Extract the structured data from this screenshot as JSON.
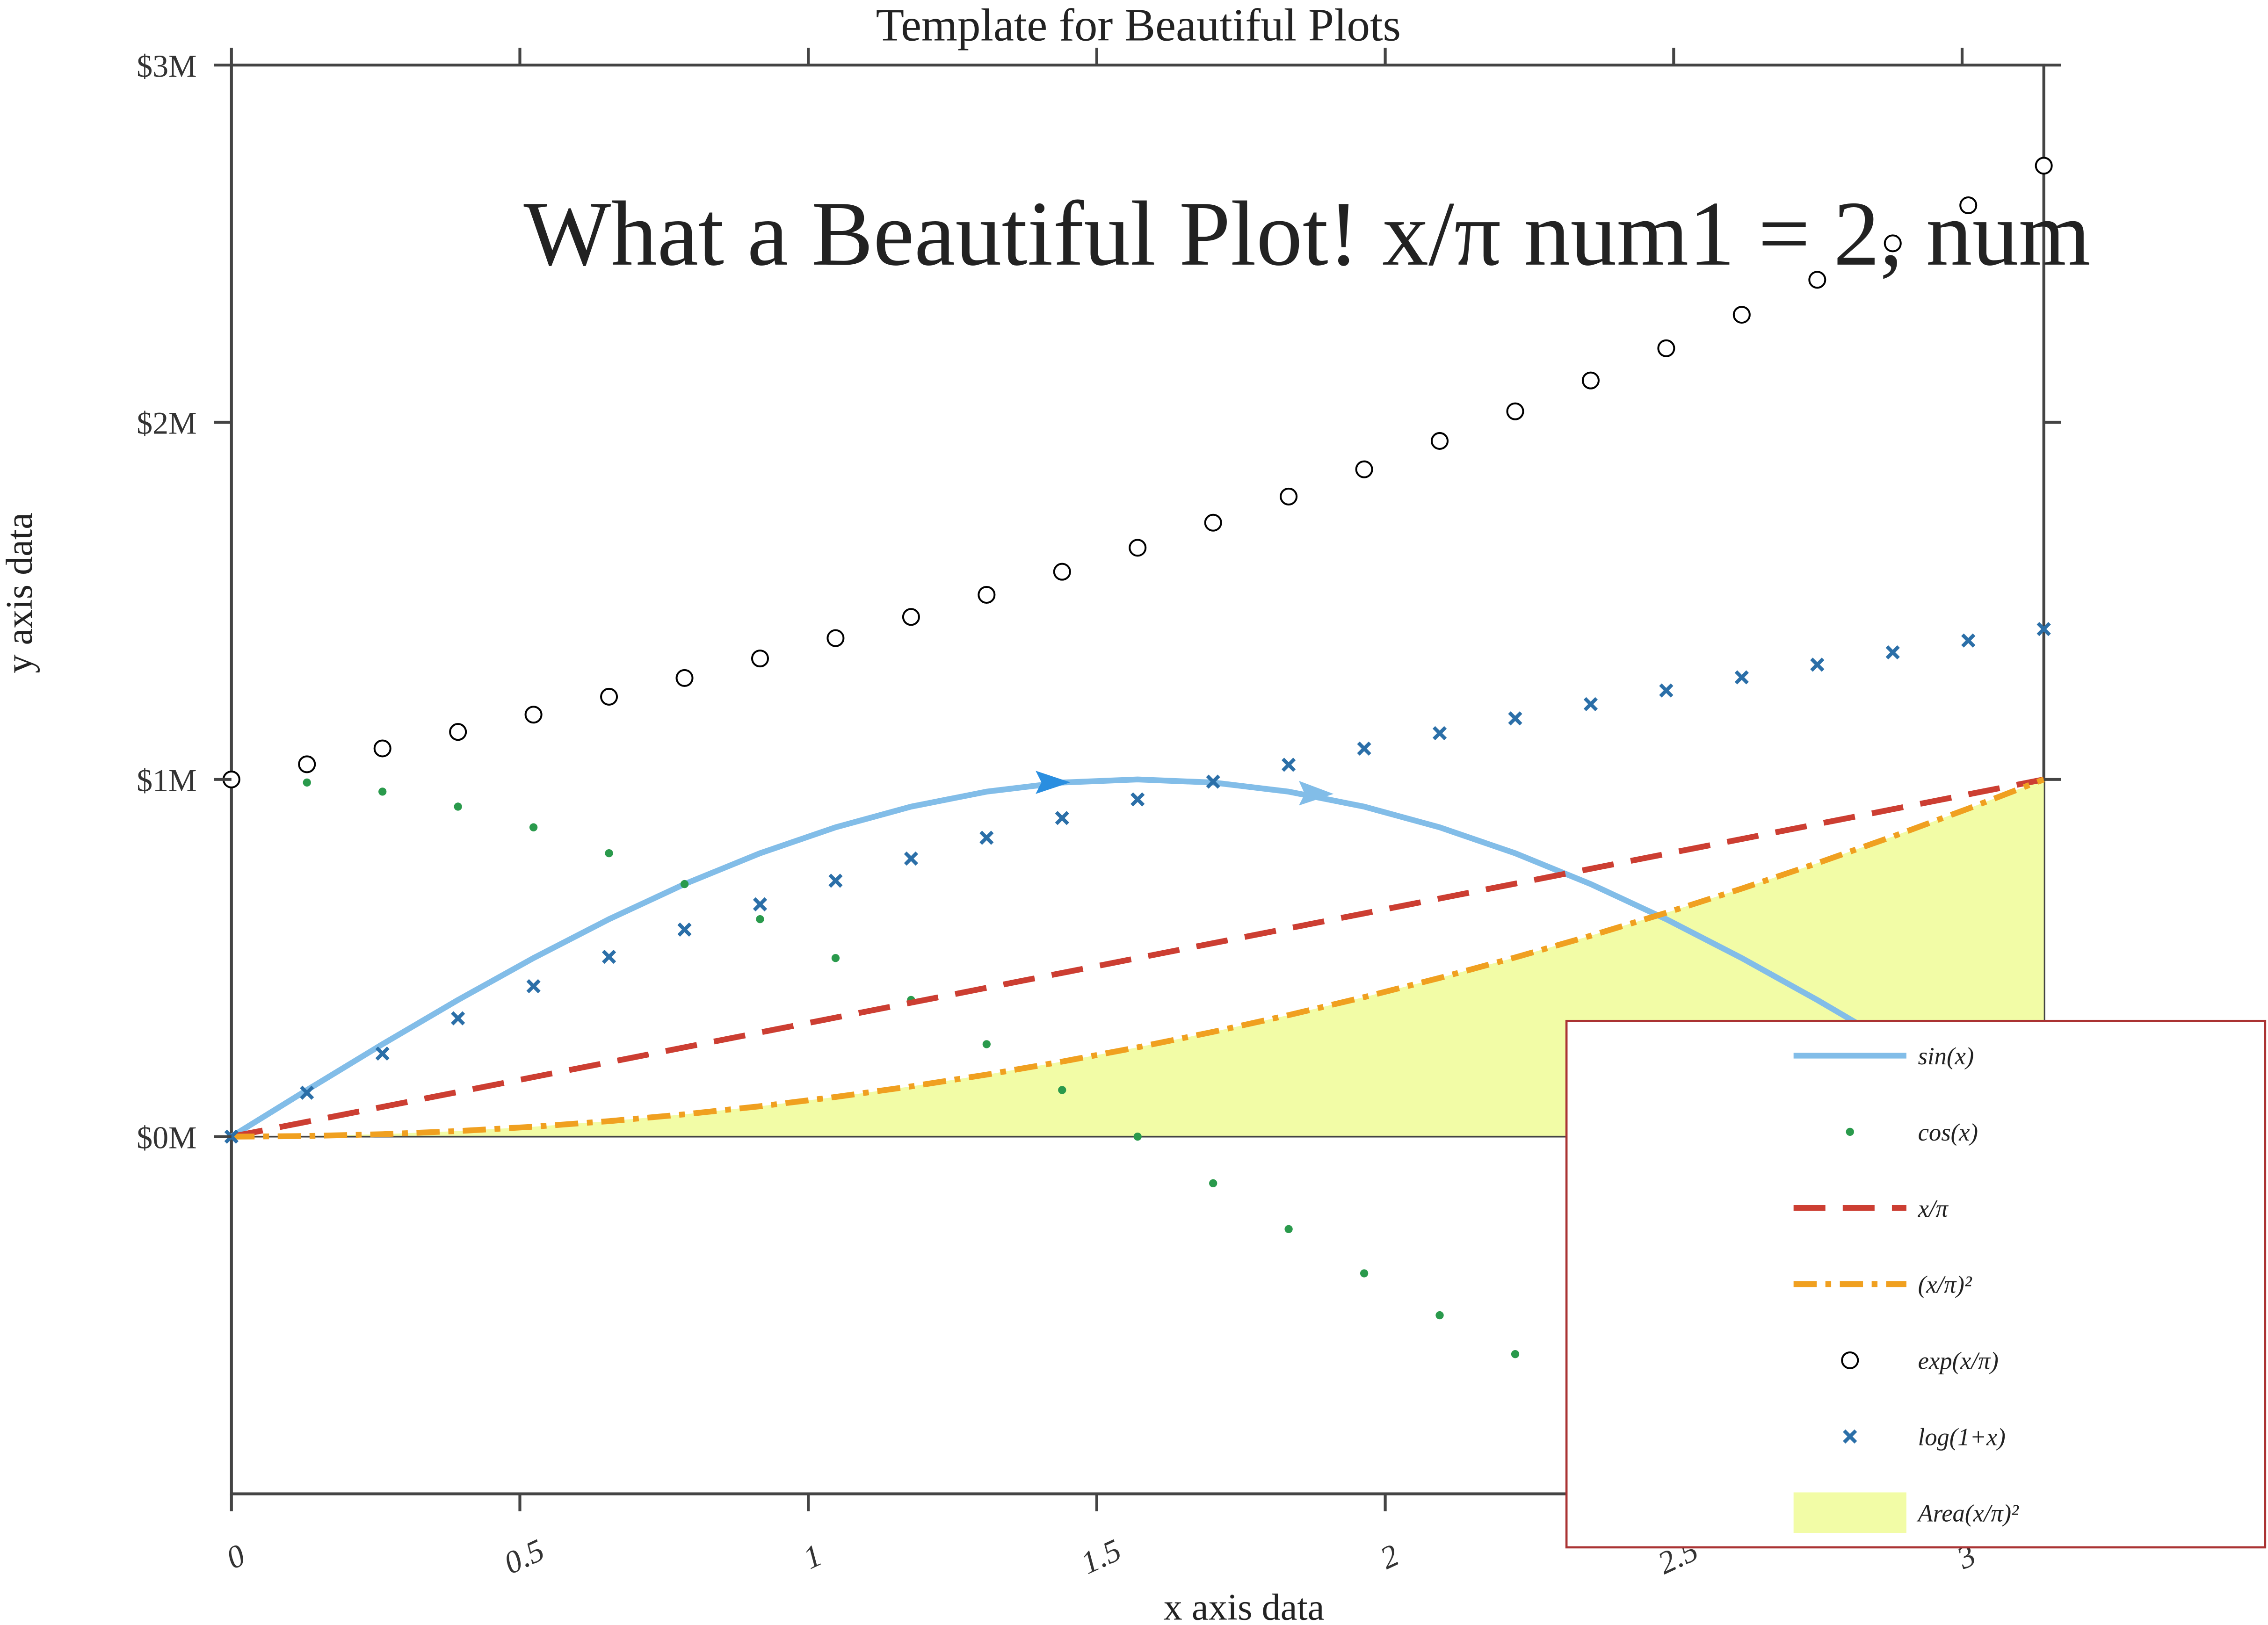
{
  "chart_data": {
    "type": "line",
    "title": "Template for Beautiful Plots",
    "xlabel": "x axis data",
    "ylabel": "y axis data",
    "annotation": "What a Beautiful Plot! x/π num1 = 2, num",
    "x": [
      0,
      0.1309,
      0.2618,
      0.3927,
      0.5236,
      0.6545,
      0.7854,
      0.9163,
      1.0472,
      1.1781,
      1.309,
      1.4399,
      1.5708,
      1.7017,
      1.8326,
      1.9635,
      2.0944,
      2.2253,
      2.3562,
      2.4871,
      2.618,
      2.7489,
      2.8798,
      3.0107,
      3.1416
    ],
    "xlim": [
      0,
      3.1416
    ],
    "xticks": [
      0,
      0.5,
      1,
      1.5,
      2,
      2.5,
      3
    ],
    "ylim": [
      -1,
      3
    ],
    "yticks": [
      {
        "value": 0,
        "label": "$0M"
      },
      {
        "value": 1,
        "label": "$1M"
      },
      {
        "value": 2,
        "label": "$2M"
      },
      {
        "value": 3,
        "label": "$3M"
      }
    ],
    "legend": "lower right",
    "series": [
      {
        "name": "sin(x)",
        "color": "#82bde8",
        "style": "solid",
        "values": [
          0,
          0.1305,
          0.2588,
          0.3827,
          0.5,
          0.6088,
          0.7071,
          0.7934,
          0.866,
          0.9239,
          0.9659,
          0.9914,
          1,
          0.9914,
          0.9659,
          0.9239,
          0.866,
          0.7934,
          0.7071,
          0.6088,
          0.5,
          0.3827,
          0.2588,
          0.1305,
          0
        ]
      },
      {
        "name": "cos(x)",
        "color": "#2a9a4c",
        "style": "dots",
        "values": [
          1,
          0.9914,
          0.9659,
          0.9239,
          0.866,
          0.7934,
          0.7071,
          0.6088,
          0.5,
          0.3827,
          0.2588,
          0.1305,
          0,
          -0.1305,
          -0.2588,
          -0.3827,
          -0.5,
          -0.6088,
          -0.7071,
          -0.7934,
          -0.866,
          -0.9239,
          -0.9659,
          -0.9914,
          -1
        ]
      },
      {
        "name": "x/π",
        "color": "#cc3e32",
        "style": "dashed",
        "values": [
          0,
          0.0417,
          0.0833,
          0.125,
          0.1667,
          0.2083,
          0.25,
          0.2917,
          0.3333,
          0.375,
          0.4167,
          0.4583,
          0.5,
          0.5417,
          0.5833,
          0.625,
          0.6667,
          0.7083,
          0.75,
          0.7917,
          0.8333,
          0.875,
          0.9167,
          0.9583,
          1
        ]
      },
      {
        "name": "(x/π)²",
        "color": "#f0a020",
        "style": "dashdot",
        "values": [
          0,
          0.0017,
          0.0069,
          0.0156,
          0.0278,
          0.0434,
          0.0625,
          0.0851,
          0.1111,
          0.1406,
          0.1736,
          0.2101,
          0.25,
          0.2934,
          0.3403,
          0.3906,
          0.4444,
          0.5017,
          0.5625,
          0.6267,
          0.6944,
          0.7656,
          0.8403,
          0.9184,
          1
        ]
      },
      {
        "name": "exp(x/π)",
        "color": "#000000",
        "style": "circles",
        "values": [
          1,
          1.0425,
          1.0869,
          1.1331,
          1.1814,
          1.2316,
          1.284,
          1.3387,
          1.3956,
          1.455,
          1.5169,
          1.5815,
          1.6487,
          1.7189,
          1.792,
          1.8682,
          1.9477,
          2.0306,
          2.117,
          2.2071,
          2.301,
          2.3989,
          2.5009,
          2.6074,
          2.7183
        ]
      },
      {
        "name": "log(1+x)",
        "color": "#2b6fa8",
        "style": "crosses",
        "values": [
          0,
          0.123,
          0.2325,
          0.3313,
          0.4211,
          0.5035,
          0.5797,
          0.6504,
          0.7165,
          0.7785,
          0.8368,
          0.892,
          0.9442,
          0.9939,
          1.0412,
          1.0864,
          1.1296,
          1.171,
          1.2108,
          1.2491,
          1.2859,
          1.3214,
          1.3558,
          1.389,
          1.4211
        ]
      },
      {
        "name": "Area(x/π)²",
        "color": "#f2fca6",
        "style": "area",
        "values": [
          0,
          0.0017,
          0.0069,
          0.0156,
          0.0278,
          0.0434,
          0.0625,
          0.0851,
          0.1111,
          0.1406,
          0.1736,
          0.2101,
          0.25,
          0.2934,
          0.3403,
          0.3906,
          0.4444,
          0.5017,
          0.5625,
          0.6267,
          0.6944,
          0.7656,
          0.8403,
          0.9184,
          1
        ]
      }
    ]
  }
}
